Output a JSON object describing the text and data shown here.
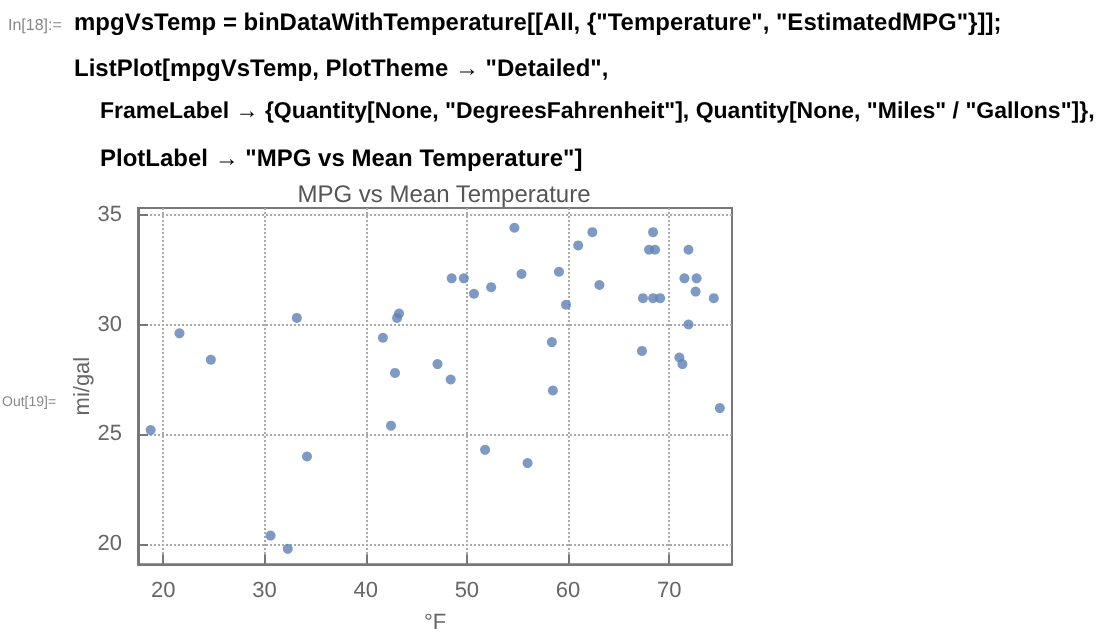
{
  "chart_data": {
    "type": "scatter",
    "title": "MPG vs Mean Temperature",
    "xlabel": "°F",
    "ylabel": "mi/gal",
    "annotations": [
      "In[18]:=",
      "mpgVsTemp = binDataWithTemperature[[All, {\"Temperature\", \"EstimatedMPG\"}]];",
      "ListPlot[mpgVsTemp, PlotTheme → \"Detailed\",",
      "FrameLabel → {Quantity[None, \"DegreesFahrenheit\"], Quantity[None, \"Miles\" / \"Gallons\"]},",
      "PlotLabel → \"MPG vs Mean Temperature\"]",
      "Out[19]="
    ],
    "series": [
      {
        "color": "#5e81b5",
        "x": [
          18.75,
          21.6,
          24.7,
          33.2,
          30.6,
          32.3,
          34.2,
          41.7,
          43.1,
          43.3,
          42.9,
          42.5,
          47.1,
          48.4,
          48.5,
          49.7,
          50.7,
          52.4,
          51.8,
          54.7,
          55.4,
          56.0,
          59.1,
          58.4,
          58.5,
          59.8,
          61.0,
          62.4,
          63.1,
          67.3,
          67.4,
          68.4,
          68.0,
          68.6,
          68.4,
          69.1,
          71.5,
          71.9,
          71.9,
          71.0,
          71.3,
          72.7,
          72.6,
          74.4,
          75.0
        ],
        "values": [
          25.2,
          29.6,
          28.4,
          30.3,
          20.4,
          19.8,
          24.0,
          29.4,
          30.3,
          30.5,
          27.8,
          25.4,
          28.2,
          27.5,
          32.1,
          32.1,
          31.4,
          31.7,
          24.3,
          34.4,
          32.3,
          23.7,
          32.4,
          29.2,
          27.0,
          30.9,
          33.6,
          34.2,
          31.8,
          28.8,
          31.2,
          34.2,
          33.4,
          33.4,
          31.2,
          31.2,
          32.1,
          33.4,
          30.0,
          28.5,
          28.2,
          32.1,
          31.5,
          31.2,
          26.2
        ]
      }
    ],
    "xlim": [
      17.5,
      76.2
    ],
    "ylim": [
      19.1,
      35.3
    ],
    "xticks": [
      20,
      30,
      40,
      50,
      60,
      70
    ],
    "yticks": [
      20,
      25,
      30,
      35
    ],
    "grid": true,
    "marker": "circle"
  }
}
